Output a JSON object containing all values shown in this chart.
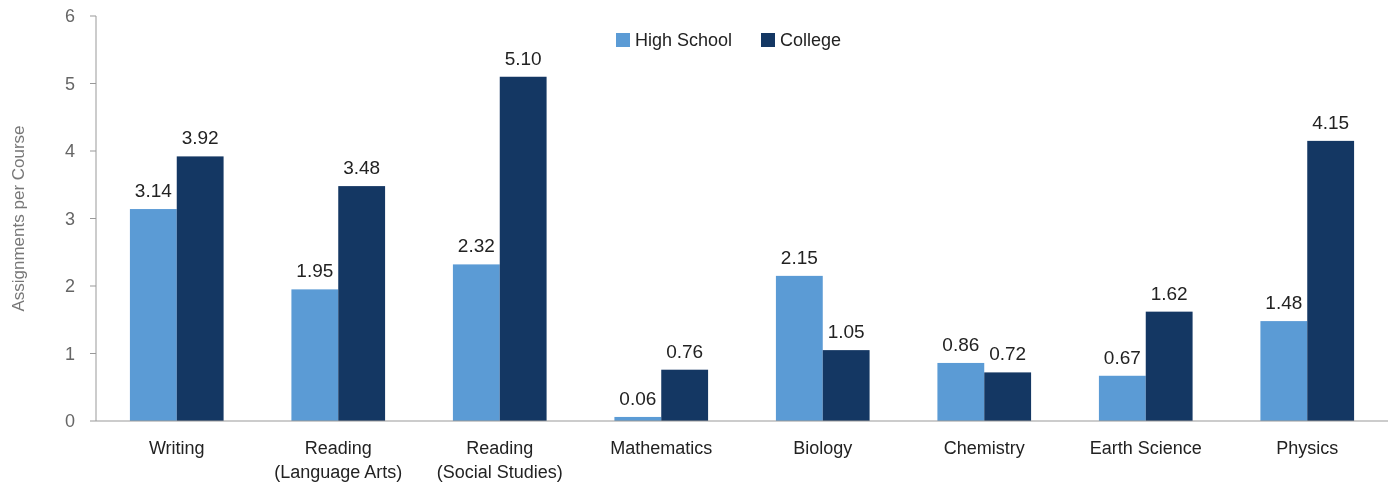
{
  "chart_data": {
    "type": "bar",
    "ylabel": "Assignments per Course",
    "categories": [
      "Writing",
      "Reading\n(Language Arts)",
      "Reading\n(Social Studies)",
      "Mathematics",
      "Biology",
      "Chemistry",
      "Earth Science",
      "Physics"
    ],
    "series": [
      {
        "name": "High School",
        "color": "#5b9bd5",
        "values": [
          3.14,
          1.95,
          2.32,
          0.06,
          2.15,
          0.86,
          0.67,
          1.48
        ],
        "value_labels": [
          "3.14",
          "1.95",
          "2.32",
          "0.06",
          "2.15",
          "0.86",
          "0.67",
          "1.48"
        ]
      },
      {
        "name": "College",
        "color": "#143763",
        "values": [
          3.92,
          3.48,
          5.1,
          0.76,
          1.05,
          0.72,
          1.62,
          4.15
        ],
        "value_labels": [
          "3.92",
          "3.48",
          "5.10",
          "0.76",
          "1.05",
          "0.72",
          "1.62",
          "4.15"
        ]
      }
    ],
    "ylim": [
      0,
      6
    ],
    "yticks": [
      0,
      1,
      2,
      3,
      4,
      5,
      6
    ],
    "legend": "top",
    "grid": false
  }
}
